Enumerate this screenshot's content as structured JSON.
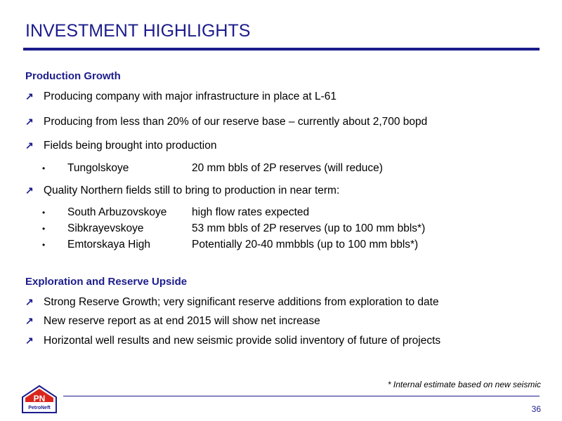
{
  "title": "INVESTMENT HIGHLIGHTS",
  "sections": [
    {
      "heading": "Production Growth",
      "bullets": [
        "Producing company with major infrastructure in place at L-61",
        "Producing from less than 20% of our reserve base – currently about 2,700 bopd",
        "Fields being brought into production",
        "Quality Northern fields still to bring to production in near term:"
      ],
      "sub_items_1": [
        {
          "name": "Tungolskoye",
          "detail": "20 mm bbls of 2P reserves (will reduce)"
        }
      ],
      "sub_items_2": [
        {
          "name": "South Arbuzovskoye",
          "detail": "high flow rates expected"
        },
        {
          "name": "Sibkrayevskoye",
          "detail": "53 mm bbls of 2P reserves (up to 100 mm bbls*)"
        },
        {
          "name": "Emtorskaya High",
          "detail": "Potentially 20-40 mmbbls  (up to 100 mm bbls*)"
        }
      ]
    },
    {
      "heading": "Exploration and Reserve Upside",
      "bullets": [
        "Strong Reserve Growth; very significant reserve additions from exploration to date",
        "New reserve report as at end 2015 will show net increase",
        "Horizontal well results and new seismic provide solid inventory of future of projects"
      ]
    }
  ],
  "footnote": "* Internal estimate based on new seismic",
  "page_number": "36",
  "logo": {
    "text": "PN",
    "subtext": "PetroNeft"
  },
  "colors": {
    "accent": "#1c1c8c",
    "logo_red": "#d9261c"
  },
  "icons": {
    "bullet": "arrow-up-right-icon",
    "sub_bullet": "dot-icon"
  }
}
